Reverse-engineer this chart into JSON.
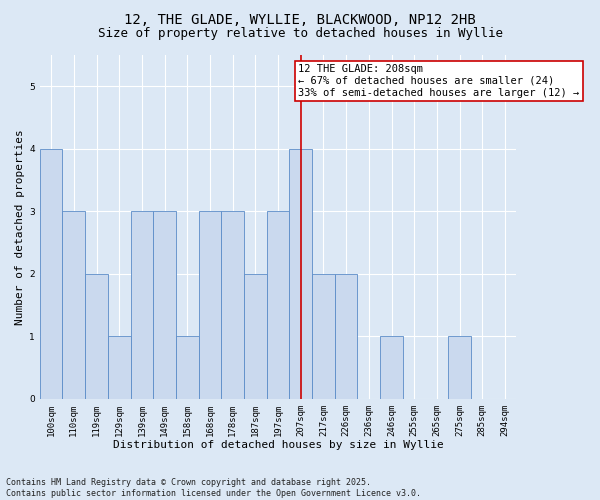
{
  "title": "12, THE GLADE, WYLLIE, BLACKWOOD, NP12 2HB",
  "subtitle": "Size of property relative to detached houses in Wyllie",
  "xlabel": "Distribution of detached houses by size in Wyllie",
  "ylabel": "Number of detached properties",
  "categories": [
    "100sqm",
    "110sqm",
    "119sqm",
    "129sqm",
    "139sqm",
    "149sqm",
    "158sqm",
    "168sqm",
    "178sqm",
    "187sqm",
    "197sqm",
    "207sqm",
    "217sqm",
    "226sqm",
    "236sqm",
    "246sqm",
    "255sqm",
    "265sqm",
    "275sqm",
    "285sqm",
    "294sqm"
  ],
  "values": [
    4,
    3,
    2,
    1,
    3,
    3,
    1,
    3,
    3,
    2,
    3,
    4,
    2,
    2,
    0,
    1,
    0,
    0,
    1,
    0,
    0
  ],
  "bar_color": "#cad9ee",
  "bar_edge_color": "#5b8cc8",
  "highlight_index": 11,
  "highlight_line_color": "#cc0000",
  "annotation_text": "12 THE GLADE: 208sqm\n← 67% of detached houses are smaller (24)\n33% of semi-detached houses are larger (12) →",
  "annotation_box_color": "#cc0000",
  "ylim": [
    0,
    5.5
  ],
  "yticks": [
    0,
    1,
    2,
    3,
    4,
    5
  ],
  "footer_text": "Contains HM Land Registry data © Crown copyright and database right 2025.\nContains public sector information licensed under the Open Government Licence v3.0.",
  "background_color": "#dce8f5",
  "title_fontsize": 10,
  "subtitle_fontsize": 9,
  "axis_label_fontsize": 8,
  "tick_fontsize": 6.5,
  "footer_fontsize": 6,
  "annotation_fontsize": 7.5
}
